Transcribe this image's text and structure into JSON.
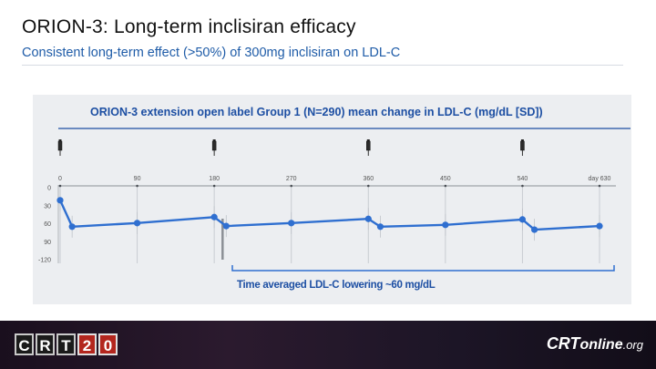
{
  "slide": {
    "title": "ORION-3: Long-term inclisiran efficacy",
    "subtitle": "Consistent long-term effect (>50%) of 300mg inclisiran on LDL-C"
  },
  "chart_data": {
    "type": "line",
    "title": "ORION-3 extension open label Group 1 (N=290) mean change in LDL-C (mg/dL [SD])",
    "xlabel": "",
    "ylabel": "",
    "x_ticks": [
      {
        "value": 0,
        "label": "0"
      },
      {
        "value": 90,
        "label": "90"
      },
      {
        "value": 180,
        "label": "180"
      },
      {
        "value": 270,
        "label": "270"
      },
      {
        "value": 360,
        "label": "360"
      },
      {
        "value": 450,
        "label": "450"
      },
      {
        "value": 540,
        "label": "540"
      },
      {
        "value": 630,
        "label": "day 630"
      }
    ],
    "y_ticks": [
      {
        "value": 0,
        "label": "0"
      },
      {
        "value": -30,
        "label": "30"
      },
      {
        "value": -60,
        "label": "60"
      },
      {
        "value": -90,
        "label": "90"
      },
      {
        "value": -120,
        "label": "-120"
      }
    ],
    "xlim": [
      0,
      630
    ],
    "ylim": [
      -120,
      0
    ],
    "injection_days": [
      0,
      180,
      360,
      540
    ],
    "series": [
      {
        "name": "Mean change in LDL-C",
        "color": "#2f6fd0",
        "points": [
          {
            "x": 0,
            "y": -21
          },
          {
            "x": 14,
            "y": -65
          },
          {
            "x": 90,
            "y": -59
          },
          {
            "x": 180,
            "y": -49
          },
          {
            "x": 194,
            "y": -64
          },
          {
            "x": 270,
            "y": -59
          },
          {
            "x": 360,
            "y": -52
          },
          {
            "x": 374,
            "y": -65
          },
          {
            "x": 450,
            "y": -62
          },
          {
            "x": 540,
            "y": -53
          },
          {
            "x": 554,
            "y": -70
          },
          {
            "x": 630,
            "y": -64
          }
        ]
      }
    ],
    "bracket_label": "Time averaged LDL-C lowering ~60 mg/dL"
  },
  "footer": {
    "left_logo_letters": [
      "C",
      "R",
      "T",
      "2",
      "0"
    ],
    "right_logo": {
      "crt": "CRT",
      "online": "online",
      "org": ".org"
    }
  },
  "colors": {
    "accent": "#1f5ca8",
    "chart_title": "#1d4fa3",
    "line": "#2f6fd0",
    "panel": "#eceef1"
  }
}
